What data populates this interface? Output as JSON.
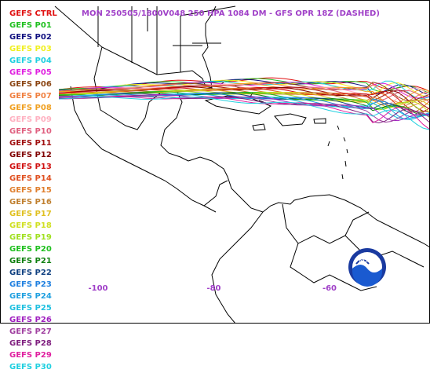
{
  "title": "MON 250505/1800V048  250 HPA 1084 DM - GFS OPR 18Z (DASHED)",
  "members": [
    {
      "label": "GEFS CTRL",
      "color": "#e01010"
    },
    {
      "label": "GEFS P01",
      "color": "#20c020"
    },
    {
      "label": "GEFS P02",
      "color": "#101080"
    },
    {
      "label": "GEFS P03",
      "color": "#f0f020"
    },
    {
      "label": "GEFS P04",
      "color": "#20d0e0"
    },
    {
      "label": "GEFS P05",
      "color": "#e020e0"
    },
    {
      "label": "GEFS P06",
      "color": "#8b4513"
    },
    {
      "label": "GEFS P07",
      "color": "#f08040"
    },
    {
      "label": "GEFS P08",
      "color": "#f0a020"
    },
    {
      "label": "GEFS P09",
      "color": "#ffb0c0"
    },
    {
      "label": "GEFS P10",
      "color": "#e06080"
    },
    {
      "label": "GEFS P11",
      "color": "#a01010"
    },
    {
      "label": "GEFS P12",
      "color": "#800000"
    },
    {
      "label": "GEFS P13",
      "color": "#d01010"
    },
    {
      "label": "GEFS P14",
      "color": "#e05020"
    },
    {
      "label": "GEFS P15",
      "color": "#e08030"
    },
    {
      "label": "GEFS P16",
      "color": "#c08030"
    },
    {
      "label": "GEFS P17",
      "color": "#e0c020"
    },
    {
      "label": "GEFS P18",
      "color": "#d0e020"
    },
    {
      "label": "GEFS P19",
      "color": "#a0e020"
    },
    {
      "label": "GEFS P20",
      "color": "#20c020"
    },
    {
      "label": "GEFS P21",
      "color": "#108010"
    },
    {
      "label": "GEFS P22",
      "color": "#104080"
    },
    {
      "label": "GEFS P23",
      "color": "#2080e0"
    },
    {
      "label": "GEFS P24",
      "color": "#20a0e0"
    },
    {
      "label": "GEFS P25",
      "color": "#20c0e0"
    },
    {
      "label": "GEFS P26",
      "color": "#a020c0"
    },
    {
      "label": "GEFS P27",
      "color": "#a040a0"
    },
    {
      "label": "GEFS P28",
      "color": "#802080"
    },
    {
      "label": "GEFS P29",
      "color": "#e020a0"
    },
    {
      "label": "GEFS P30",
      "color": "#20d0e0"
    }
  ],
  "lon_labels": [
    "-100",
    "-80",
    "-60"
  ],
  "lon_values": [
    -100,
    -80,
    -60
  ],
  "logo_text": "NOAA",
  "colors": {
    "title": "#a040c8",
    "land": "#000000",
    "background": "#ffffff"
  }
}
